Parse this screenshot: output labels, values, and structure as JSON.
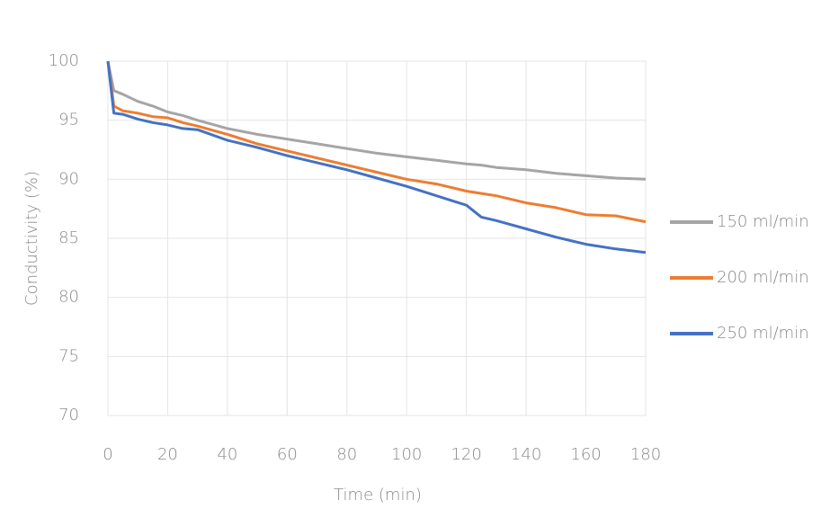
{
  "chart_data": {
    "type": "line",
    "x_label": "Time (min)",
    "y_label": "Conductivity (%)",
    "x": [
      0,
      2,
      5,
      10,
      15,
      20,
      25,
      30,
      40,
      50,
      60,
      70,
      80,
      90,
      100,
      110,
      120,
      125,
      130,
      140,
      150,
      160,
      170,
      180
    ],
    "series": [
      {
        "name": "150 ml/min",
        "color": "#a5a5a5",
        "values": [
          100,
          97.5,
          97.2,
          96.6,
          96.2,
          95.7,
          95.4,
          95.0,
          94.3,
          93.8,
          93.4,
          93.0,
          92.6,
          92.2,
          91.9,
          91.6,
          91.3,
          91.2,
          91.0,
          90.8,
          90.5,
          90.3,
          90.1,
          90.0
        ]
      },
      {
        "name": "200 ml/min",
        "color": "#ed7d31",
        "values": [
          100,
          96.2,
          95.8,
          95.6,
          95.3,
          95.2,
          94.8,
          94.5,
          93.8,
          93.0,
          92.4,
          91.8,
          91.2,
          90.6,
          90.0,
          89.6,
          89.0,
          88.8,
          88.6,
          88.0,
          87.6,
          87.0,
          86.9,
          86.4
        ]
      },
      {
        "name": "250 ml/min",
        "color": "#4472c4",
        "values": [
          100,
          95.6,
          95.5,
          95.1,
          94.8,
          94.6,
          94.3,
          94.2,
          93.3,
          92.7,
          92.0,
          91.4,
          90.8,
          90.1,
          89.4,
          88.6,
          87.8,
          86.8,
          86.5,
          85.8,
          85.1,
          84.5,
          84.1,
          83.8
        ]
      }
    ],
    "xlim": [
      0,
      180
    ],
    "xticks": [
      0,
      20,
      40,
      60,
      80,
      100,
      120,
      140,
      160,
      180
    ],
    "ylim": [
      70,
      100
    ],
    "yticks": [
      70,
      75,
      80,
      85,
      90,
      95,
      100
    ],
    "grid": true,
    "legend": "right"
  }
}
